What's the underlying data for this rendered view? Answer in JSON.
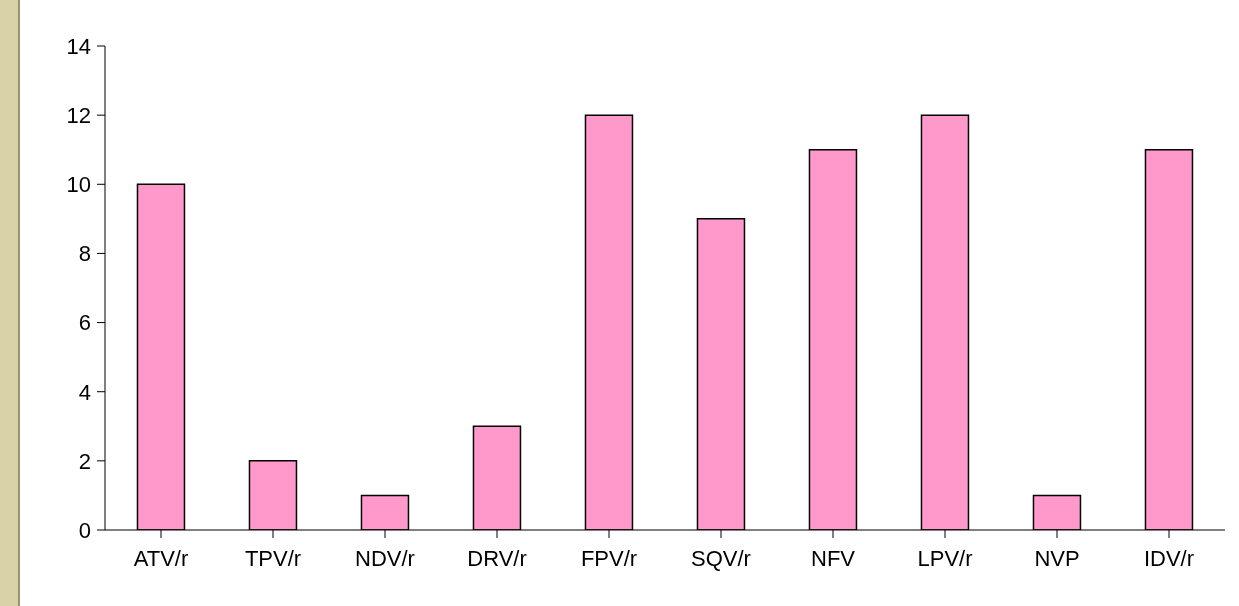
{
  "chart_data": {
    "type": "bar",
    "categories": [
      "ATV/r",
      "TPV/r",
      "NDV/r",
      "DRV/r",
      "FPV/r",
      "SQV/r",
      "NFV",
      "LPV/r",
      "NVP",
      "IDV/r"
    ],
    "values": [
      10,
      2,
      1,
      3,
      12,
      9,
      11,
      12,
      1,
      11
    ],
    "color": "#ff99cc",
    "ylim": [
      0,
      14
    ],
    "yticks": [
      0,
      2,
      4,
      6,
      8,
      10,
      12,
      14
    ],
    "grid": false,
    "legend": false
  }
}
